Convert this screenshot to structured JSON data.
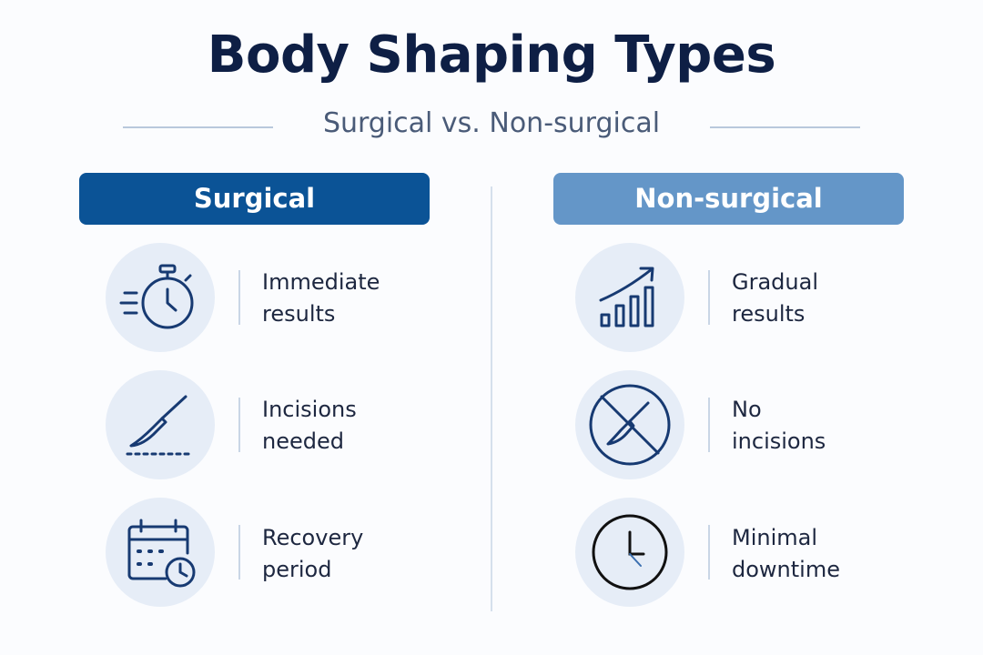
{
  "header": {
    "title": "Body Shaping Types",
    "subtitle": "Surgical vs. Non-surgical"
  },
  "columns": [
    {
      "heading": "Surgical",
      "items": [
        {
          "text": "Immediate\nresults"
        },
        {
          "text": "Incisions\nneeded"
        },
        {
          "text": "Recovery\nperiod"
        }
      ]
    },
    {
      "heading": "Non-surgical",
      "items": [
        {
          "text": "Gradual\nresults"
        },
        {
          "text": "No\nincisions"
        },
        {
          "text": "Minimal\ndowntime"
        }
      ]
    }
  ]
}
